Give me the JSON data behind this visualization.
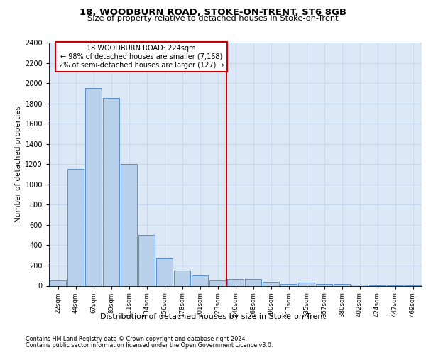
{
  "title1": "18, WOODBURN ROAD, STOKE-ON-TRENT, ST6 8GB",
  "title2": "Size of property relative to detached houses in Stoke-on-Trent",
  "xlabel": "Distribution of detached houses by size in Stoke-on-Trent",
  "ylabel": "Number of detached properties",
  "annotation_line1": "18 WOODBURN ROAD: 224sqm",
  "annotation_line2": "← 98% of detached houses are smaller (7,168)",
  "annotation_line3": "2% of semi-detached houses are larger (127) →",
  "footer1": "Contains HM Land Registry data © Crown copyright and database right 2024.",
  "footer2": "Contains public sector information licensed under the Open Government Licence v3.0.",
  "bar_labels": [
    "22sqm",
    "44sqm",
    "67sqm",
    "89sqm",
    "111sqm",
    "134sqm",
    "156sqm",
    "178sqm",
    "201sqm",
    "223sqm",
    "246sqm",
    "268sqm",
    "290sqm",
    "313sqm",
    "335sqm",
    "357sqm",
    "380sqm",
    "402sqm",
    "424sqm",
    "447sqm",
    "469sqm"
  ],
  "bar_values": [
    50,
    1150,
    1950,
    1850,
    1200,
    500,
    270,
    150,
    100,
    50,
    70,
    70,
    40,
    20,
    30,
    15,
    15,
    10,
    5,
    5,
    5
  ],
  "bar_color": "#b8d0ea",
  "bar_edge_color": "#5b8fc9",
  "vertical_line_x": 9.5,
  "vertical_line_color": "#cc0000",
  "ylim": [
    0,
    2400
  ],
  "yticks": [
    0,
    200,
    400,
    600,
    800,
    1000,
    1200,
    1400,
    1600,
    1800,
    2000,
    2200,
    2400
  ],
  "grid_color": "#c8d8ec",
  "background_color": "#dce8f5",
  "annotation_box_color": "#ffffff",
  "annotation_box_edge": "#cc0000",
  "fig_bg": "#ffffff"
}
